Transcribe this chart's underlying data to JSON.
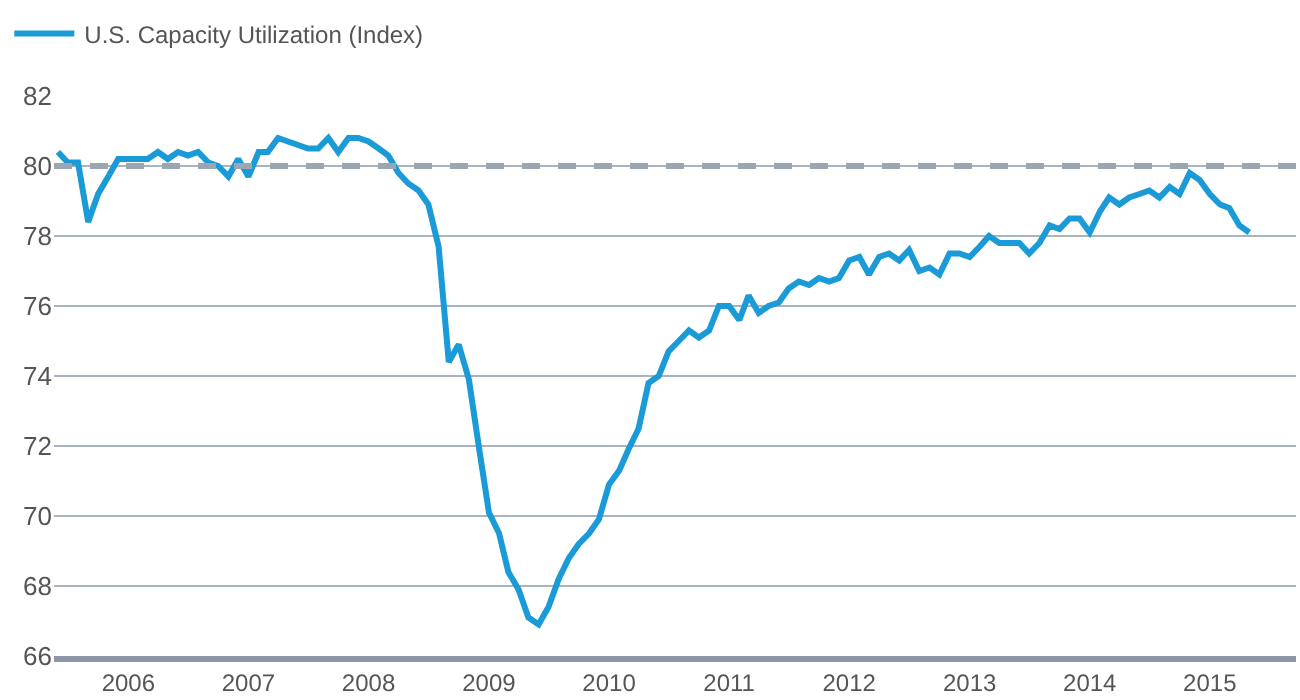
{
  "chart_data": {
    "type": "line",
    "legend": "top left",
    "grid": "y",
    "marker": "none",
    "line_style": "solid",
    "x": [
      "2005-06",
      "2005-07",
      "2005-08",
      "2005-09",
      "2005-10",
      "2005-11",
      "2005-12",
      "2006-01",
      "2006-02",
      "2006-03",
      "2006-04",
      "2006-05",
      "2006-06",
      "2006-07",
      "2006-08",
      "2006-09",
      "2006-10",
      "2006-11",
      "2006-12",
      "2007-01",
      "2007-02",
      "2007-03",
      "2007-04",
      "2007-05",
      "2007-06",
      "2007-07",
      "2007-08",
      "2007-09",
      "2007-10",
      "2007-11",
      "2007-12",
      "2008-01",
      "2008-02",
      "2008-03",
      "2008-04",
      "2008-05",
      "2008-06",
      "2008-07",
      "2008-08",
      "2008-09",
      "2008-10",
      "2008-11",
      "2008-12",
      "2009-01",
      "2009-02",
      "2009-03",
      "2009-04",
      "2009-05",
      "2009-06",
      "2009-07",
      "2009-08",
      "2009-09",
      "2009-10",
      "2009-11",
      "2009-12",
      "2010-01",
      "2010-02",
      "2010-03",
      "2010-04",
      "2010-05",
      "2010-06",
      "2010-07",
      "2010-08",
      "2010-09",
      "2010-10",
      "2010-11",
      "2010-12",
      "2011-01",
      "2011-02",
      "2011-03",
      "2011-04",
      "2011-05",
      "2011-06",
      "2011-07",
      "2011-08",
      "2011-09",
      "2011-10",
      "2011-11",
      "2011-12",
      "2012-01",
      "2012-02",
      "2012-03",
      "2012-04",
      "2012-05",
      "2012-06",
      "2012-07",
      "2012-08",
      "2012-09",
      "2012-10",
      "2012-11",
      "2012-12",
      "2013-01",
      "2013-02",
      "2013-03",
      "2013-04",
      "2013-05",
      "2013-06",
      "2013-07",
      "2013-08",
      "2013-09",
      "2013-10",
      "2013-11",
      "2013-12",
      "2014-01",
      "2014-02",
      "2014-03",
      "2014-04",
      "2014-05",
      "2014-06",
      "2014-07",
      "2014-08",
      "2014-09",
      "2014-10",
      "2014-11",
      "2014-12",
      "2015-01",
      "2015-02",
      "2015-03",
      "2015-04",
      "2015-05"
    ],
    "ylim": [
      66,
      82
    ],
    "yticks": [
      66,
      68,
      70,
      72,
      74,
      76,
      78,
      80,
      82
    ],
    "xlim": [
      "2005-05-20",
      "2015-09-20"
    ],
    "xticks": [
      {
        "value": "2006-01",
        "label": "2006"
      },
      {
        "value": "2007-01",
        "label": "2007"
      },
      {
        "value": "2008-01",
        "label": "2008"
      },
      {
        "value": "2009-01",
        "label": "2009"
      },
      {
        "value": "2010-01",
        "label": "2010"
      },
      {
        "value": "2011-01",
        "label": "2011"
      },
      {
        "value": "2012-01",
        "label": "2012"
      },
      {
        "value": "2013-01",
        "label": "2013"
      },
      {
        "value": "2014-01",
        "label": "2014"
      },
      {
        "value": "2015-01",
        "label": "2015"
      }
    ],
    "ref_lines": [
      {
        "axis": "y",
        "value": 80,
        "color": "#9aa6b2",
        "line_style": "dashed"
      }
    ],
    "series": [
      {
        "name": "U.S. Capacity Utilization (Index)",
        "color": "#1a9bd7",
        "values": [
          80.4,
          80.1,
          80.1,
          78.4,
          79.2,
          79.7,
          80.2,
          80.2,
          80.2,
          80.2,
          80.4,
          80.2,
          80.4,
          80.3,
          80.4,
          80.1,
          80.0,
          79.7,
          80.2,
          79.7,
          80.4,
          80.4,
          80.8,
          80.7,
          80.6,
          80.5,
          80.5,
          80.8,
          80.4,
          80.8,
          80.8,
          80.7,
          80.5,
          80.3,
          79.8,
          79.5,
          79.3,
          78.9,
          77.7,
          74.4,
          74.9,
          73.9,
          72.0,
          70.1,
          69.5,
          68.4,
          67.9,
          67.1,
          66.9,
          67.4,
          68.2,
          68.8,
          69.2,
          69.5,
          69.9,
          70.9,
          71.3,
          71.9,
          72.5,
          73.8,
          74.0,
          74.7,
          75.0,
          75.3,
          75.1,
          75.3,
          76.0,
          76.0,
          75.6,
          76.3,
          75.8,
          76.0,
          76.1,
          76.5,
          76.7,
          76.6,
          76.8,
          76.7,
          76.8,
          77.3,
          77.4,
          76.9,
          77.4,
          77.5,
          77.3,
          77.6,
          77.0,
          77.1,
          76.9,
          77.5,
          77.5,
          77.4,
          77.7,
          78.0,
          77.8,
          77.8,
          77.8,
          77.5,
          77.8,
          78.3,
          78.2,
          78.5,
          78.5,
          78.1,
          78.7,
          79.1,
          78.9,
          79.1,
          79.2,
          79.3,
          79.1,
          79.4,
          79.2,
          79.8,
          79.6,
          79.2,
          78.9,
          78.8,
          78.3,
          78.1
        ]
      }
    ]
  }
}
